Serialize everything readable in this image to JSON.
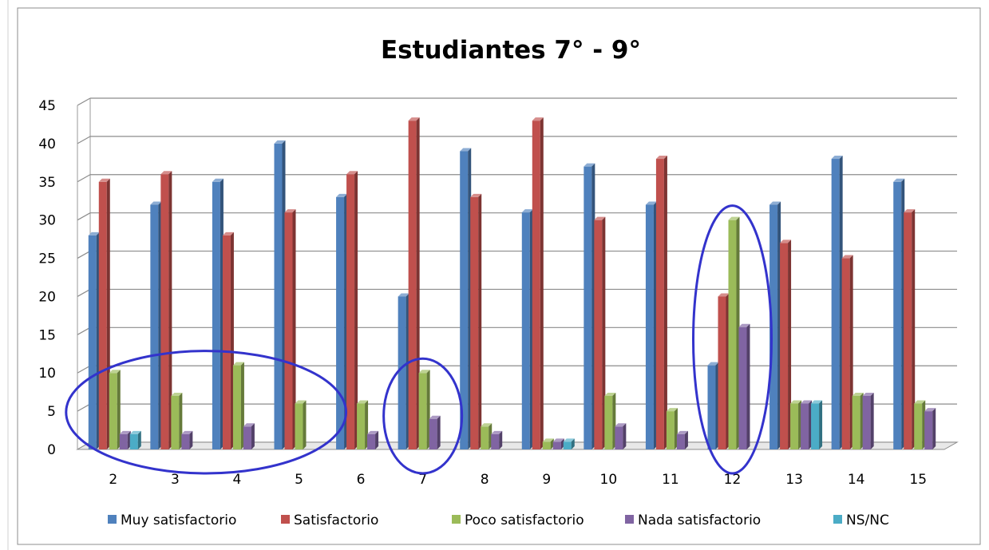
{
  "chart_data": {
    "type": "bar",
    "title": "Estudiantes 7° - 9°",
    "xlabel": "",
    "ylabel": "",
    "ylim": [
      0,
      45
    ],
    "yticks": [
      0,
      5,
      10,
      15,
      20,
      25,
      30,
      35,
      40,
      45
    ],
    "grid": true,
    "legend_position": "bottom",
    "categories": [
      "2",
      "3",
      "4",
      "5",
      "6",
      "7",
      "8",
      "9",
      "10",
      "11",
      "12",
      "13",
      "14",
      "15"
    ],
    "series": [
      {
        "name": "Muy satisfactorio",
        "color": "#4F81BD",
        "values": [
          28,
          32,
          35,
          40,
          33,
          20,
          39,
          31,
          37,
          32,
          11,
          32,
          38,
          35
        ]
      },
      {
        "name": "Satisfactorio",
        "color": "#C0504D",
        "values": [
          35,
          36,
          28,
          31,
          36,
          43,
          33,
          43,
          30,
          38,
          20,
          27,
          25,
          31
        ]
      },
      {
        "name": "Poco satisfactorio",
        "color": "#9BBB59",
        "values": [
          10,
          7,
          11,
          6,
          6,
          10,
          3,
          1,
          7,
          5,
          30,
          6,
          7,
          6
        ]
      },
      {
        "name": "Nada satisfactorio",
        "color": "#8064A2",
        "values": [
          2,
          2,
          3,
          0,
          2,
          4,
          2,
          1,
          3,
          2,
          16,
          6,
          7,
          5
        ]
      },
      {
        "name": "NS/NC",
        "color": "#4BACC6",
        "values": [
          2,
          0,
          0,
          0,
          0,
          0,
          0,
          1,
          0,
          0,
          0,
          6,
          0,
          0
        ]
      }
    ],
    "annotations": [
      {
        "type": "ellipse",
        "shape": "hand-drawn-circle",
        "color": "#3333CC",
        "around_categories": [
          "2",
          "3",
          "4",
          "5"
        ]
      },
      {
        "type": "ellipse",
        "shape": "hand-drawn-circle",
        "color": "#3333CC",
        "around_categories": [
          "7"
        ]
      },
      {
        "type": "ellipse",
        "shape": "hand-drawn-circle",
        "color": "#3333CC",
        "around_categories": [
          "12"
        ]
      }
    ]
  }
}
